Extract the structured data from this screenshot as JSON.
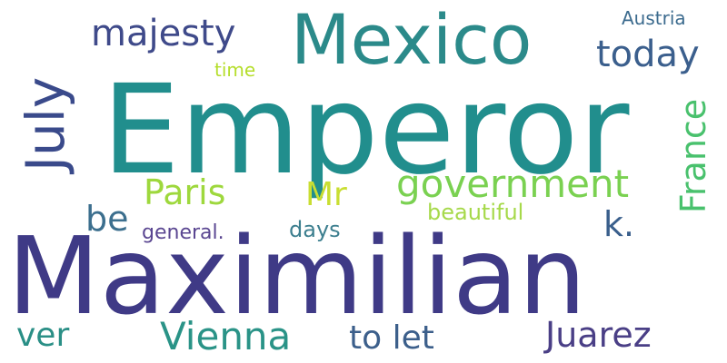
{
  "words": [
    {
      "text": "Maximilian",
      "color": "#3f3a86"
    },
    {
      "text": "Emperor",
      "color": "#218e8d"
    },
    {
      "text": "Mexico",
      "color": "#2b8a8a"
    },
    {
      "text": "July",
      "color": "#3a4a8b"
    },
    {
      "text": "majesty",
      "color": "#3f4a8a"
    },
    {
      "text": "today",
      "color": "#3b5f8d"
    },
    {
      "text": "Austria",
      "color": "#3c6b8e"
    },
    {
      "text": "time",
      "color": "#b5de2b"
    },
    {
      "text": "France",
      "color": "#49c16d"
    },
    {
      "text": "government",
      "color": "#7ad151"
    },
    {
      "text": "Paris",
      "color": "#9ed83d"
    },
    {
      "text": "Mr",
      "color": "#c9de32"
    },
    {
      "text": "be",
      "color": "#3c6f8e"
    },
    {
      "text": "k.",
      "color": "#3a5f8c"
    },
    {
      "text": "general.",
      "color": "#5a4691"
    },
    {
      "text": "days",
      "color": "#3d7f8f"
    },
    {
      "text": "beautiful",
      "color": "#a6d94a"
    },
    {
      "text": "ver",
      "color": "#2a8f86"
    },
    {
      "text": "Vienna",
      "color": "#2a9387"
    },
    {
      "text": "to let",
      "color": "#3c5f8b"
    },
    {
      "text": "Juarez",
      "color": "#4a3f86"
    }
  ]
}
